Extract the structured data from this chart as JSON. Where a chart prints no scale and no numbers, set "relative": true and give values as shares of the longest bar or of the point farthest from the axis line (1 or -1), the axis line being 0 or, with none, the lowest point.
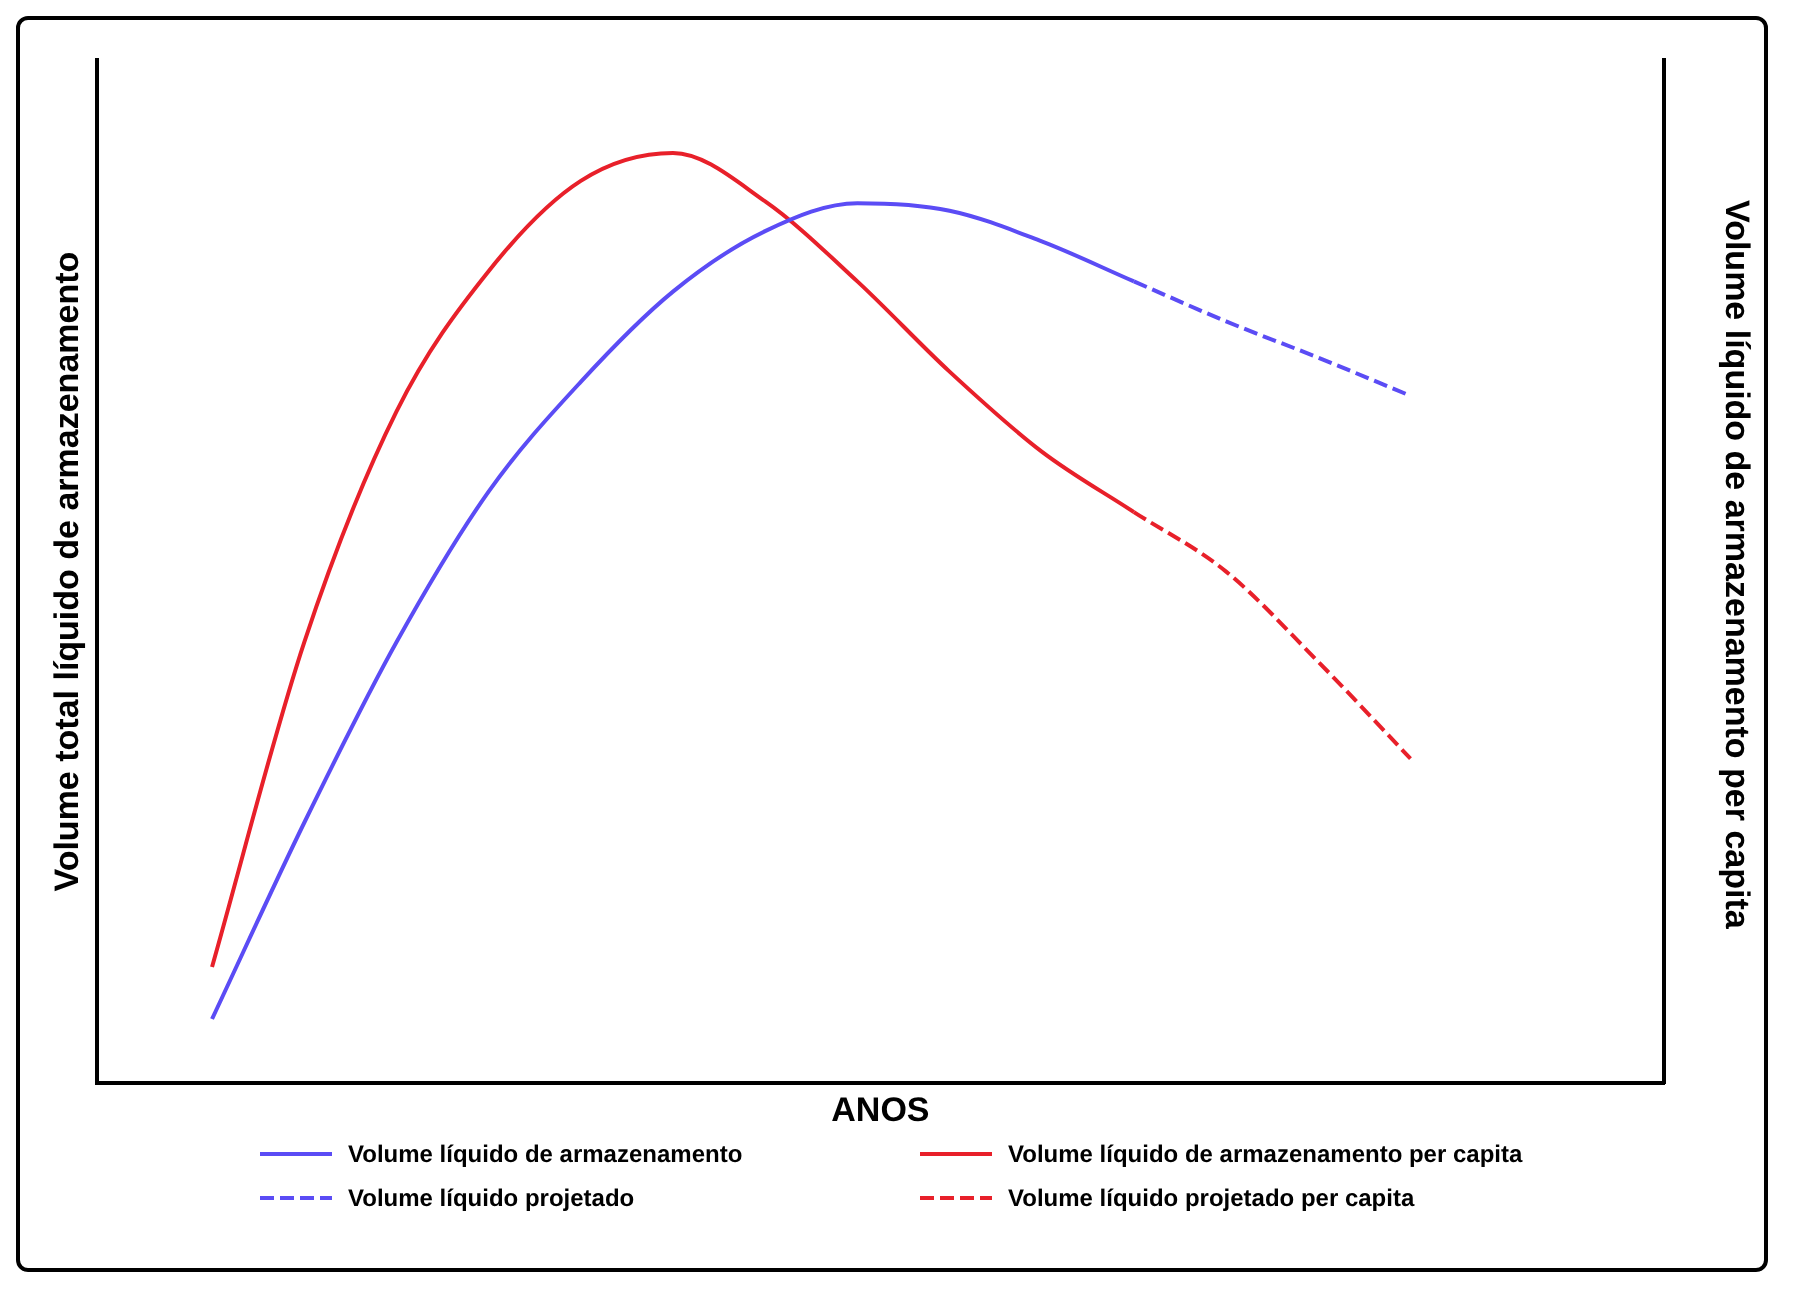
{
  "chart_data": {
    "type": "line",
    "relative": true,
    "xlabel": "ANOS",
    "ylabel": "Volume total líquido de armazenamento",
    "annotations": [
      "Volume líquido de armazenamento per capita"
    ],
    "categories": [
      null,
      null,
      null,
      null,
      null,
      null,
      null,
      null,
      null,
      null,
      null,
      null,
      null,
      null
    ],
    "grid": false,
    "legend": "bottom",
    "marker": "none",
    "series": [
      {
        "name": "Volume líquido de armazenamento",
        "color": "#5b4cf5",
        "line_style": "solid",
        "values": [
          0.069,
          0.28,
          0.474,
          0.636,
          0.754,
          0.851,
          0.916,
          0.946,
          0.938,
          0.905,
          0.862,
          null,
          null,
          null
        ]
      },
      {
        "name": "Volume líquido de armazenamento per capita",
        "color": "#e8202a",
        "line_style": "solid",
        "values": [
          0.125,
          0.474,
          0.722,
          0.873,
          0.97,
          1,
          0.948,
          0.862,
          0.765,
          0.679,
          0.614,
          null,
          null,
          null
        ]
      },
      {
        "name": "Volume líquido projetado",
        "color": "#5b4cf5",
        "line_style": "dashed",
        "values": [
          null,
          null,
          null,
          null,
          null,
          null,
          null,
          null,
          null,
          null,
          0.862,
          0.819,
          0.78,
          0.739
        ]
      },
      {
        "name": "Volume líquido projetado  per capita",
        "color": "#e8202a",
        "line_style": "dashed",
        "values": [
          null,
          null,
          null,
          null,
          null,
          null,
          null,
          null,
          null,
          null,
          0.614,
          0.55,
          0.453,
          0.349
        ]
      }
    ]
  }
}
